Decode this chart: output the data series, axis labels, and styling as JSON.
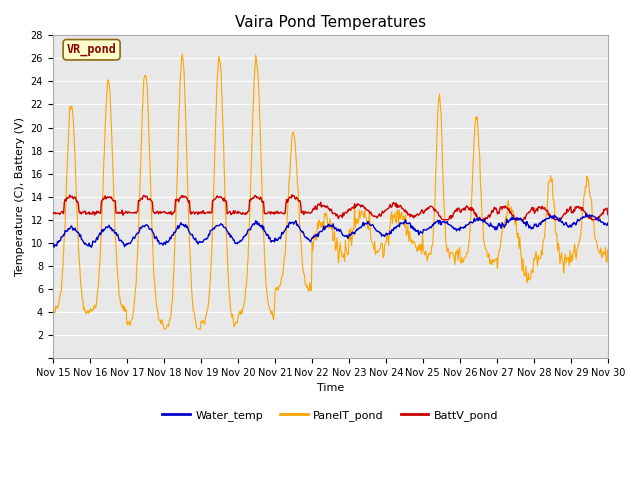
{
  "title": "Vaira Pond Temperatures",
  "xlabel": "Time",
  "ylabel": "Temperature (C), Battery (V)",
  "ylim": [
    0,
    28
  ],
  "yticks": [
    0,
    2,
    4,
    6,
    8,
    10,
    12,
    14,
    16,
    18,
    20,
    22,
    24,
    26,
    28
  ],
  "xtick_labels": [
    "Nov 15",
    "Nov 16",
    "Nov 17",
    "Nov 18",
    "Nov 19",
    "Nov 20",
    "Nov 21",
    "Nov 22",
    "Nov 23",
    "Nov 24",
    "Nov 25",
    "Nov 26",
    "Nov 27",
    "Nov 28",
    "Nov 29",
    "Nov 30"
  ],
  "water_temp_color": "#0000cc",
  "panel_temp_color": "#ffa500",
  "batt_color": "#cc0000",
  "bg_color": "#e8e8e8",
  "annotation_text": "VR_pond",
  "annotation_color": "#8b0000",
  "annotation_bg": "#ffffcc",
  "legend_water": "Water_temp",
  "legend_panel": "PanelT_pond",
  "legend_batt": "BattV_pond",
  "title_fontsize": 11,
  "axis_fontsize": 8,
  "tick_fontsize": 7
}
